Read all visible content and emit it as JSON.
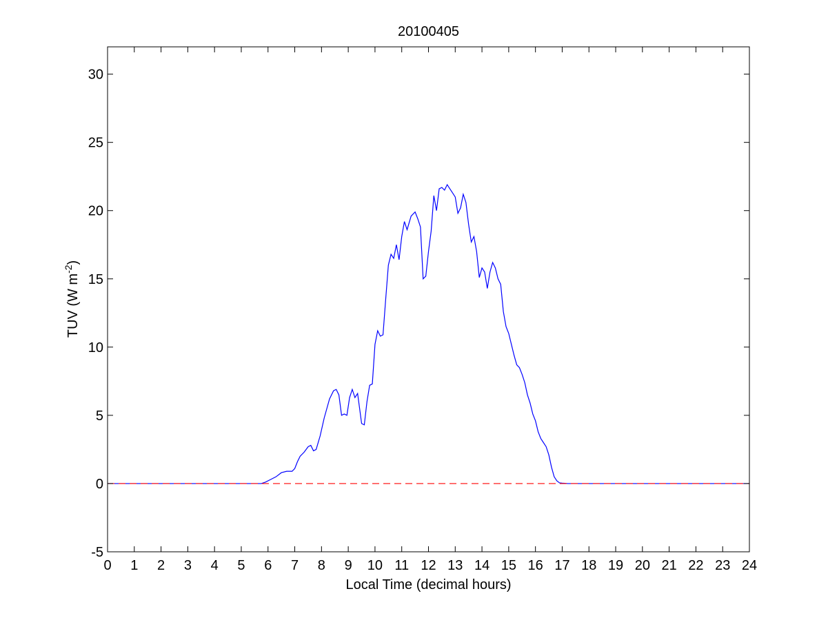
{
  "chart_data": {
    "type": "line",
    "title": "20100405",
    "xlabel": "Local Time (decimal hours)",
    "ylabel": {
      "main": "TUV (W m",
      "sup": "-2",
      "close": ")"
    },
    "xlim": [
      0,
      24
    ],
    "ylim": [
      -5,
      32
    ],
    "xticks": [
      0,
      1,
      2,
      3,
      4,
      5,
      6,
      7,
      8,
      9,
      10,
      11,
      12,
      13,
      14,
      15,
      16,
      17,
      18,
      19,
      20,
      21,
      22,
      23,
      24
    ],
    "yticks": [
      -5,
      0,
      5,
      10,
      15,
      20,
      25,
      30
    ],
    "grid": false,
    "series": [
      {
        "color": "#0000ff",
        "style": "solid",
        "x": [
          0,
          5.75,
          5.9,
          6.1,
          6.3,
          6.5,
          6.7,
          6.9,
          7.0,
          7.1,
          7.2,
          7.35,
          7.5,
          7.6,
          7.7,
          7.8,
          7.95,
          8.1,
          8.3,
          8.45,
          8.55,
          8.65,
          8.75,
          8.85,
          8.95,
          9.05,
          9.15,
          9.25,
          9.35,
          9.5,
          9.6,
          9.7,
          9.8,
          9.9,
          10.0,
          10.1,
          10.2,
          10.3,
          10.4,
          10.5,
          10.6,
          10.7,
          10.8,
          10.9,
          11.0,
          11.1,
          11.2,
          11.35,
          11.5,
          11.6,
          11.7,
          11.8,
          11.9,
          12.0,
          12.1,
          12.2,
          12.3,
          12.4,
          12.5,
          12.6,
          12.7,
          12.8,
          12.9,
          13.0,
          13.1,
          13.2,
          13.3,
          13.4,
          13.5,
          13.6,
          13.7,
          13.8,
          13.9,
          14.0,
          14.1,
          14.2,
          14.3,
          14.4,
          14.5,
          14.6,
          14.7,
          14.8,
          14.9,
          15.0,
          15.1,
          15.2,
          15.3,
          15.4,
          15.5,
          15.6,
          15.7,
          15.8,
          15.9,
          16.0,
          16.1,
          16.2,
          16.3,
          16.4,
          16.5,
          16.6,
          16.7,
          16.8,
          16.9,
          17.0,
          17.1,
          17.2,
          17.3,
          17.4,
          17.5,
          17.6,
          17.7,
          17.8,
          17.9,
          18.0,
          18.1,
          18.2,
          18.3,
          24
        ],
        "y": [
          0,
          0,
          0.1,
          0.3,
          0.5,
          0.8,
          0.9,
          0.9,
          1.1,
          1.6,
          2.0,
          2.3,
          2.7,
          2.8,
          2.4,
          2.5,
          3.5,
          4.8,
          6.2,
          6.8,
          6.9,
          6.5,
          5.0,
          5.1,
          5.0,
          6.3,
          6.9,
          6.3,
          6.6,
          4.4,
          4.3,
          6.0,
          7.2,
          7.3,
          10.2,
          11.2,
          10.8,
          10.9,
          13.5,
          16.0,
          16.8,
          16.5,
          17.5,
          16.4,
          18.1,
          19.2,
          18.6,
          19.6,
          19.9,
          19.4,
          18.8,
          15.0,
          15.2,
          17.0,
          18.5,
          21.1,
          20.0,
          21.6,
          21.7,
          21.5,
          21.9,
          21.6,
          21.3,
          21.0,
          19.8,
          20.2,
          21.2,
          20.6,
          19.0,
          17.7,
          18.1,
          17.0,
          15.1,
          15.8,
          15.5,
          14.3,
          15.5,
          16.2,
          15.8,
          15.0,
          14.6,
          12.6,
          11.5,
          11.0,
          10.2,
          9.4,
          8.7,
          8.5,
          8.0,
          7.4,
          6.5,
          5.9,
          5.1,
          4.6,
          3.8,
          3.3,
          3.0,
          2.7,
          2.1,
          1.2,
          0.5,
          0.2,
          0.05,
          0.03,
          0.02,
          0,
          0,
          0,
          0,
          0,
          0,
          0,
          0,
          0,
          0,
          0,
          0,
          0
        ]
      },
      {
        "color": "#ff0000",
        "style": "dashed",
        "x": [
          0,
          24
        ],
        "y": [
          0,
          0
        ]
      }
    ]
  }
}
